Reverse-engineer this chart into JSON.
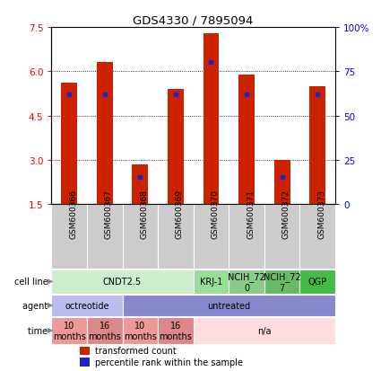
{
  "title": "GDS4330 / 7895094",
  "samples": [
    "GSM600366",
    "GSM600367",
    "GSM600368",
    "GSM600369",
    "GSM600370",
    "GSM600371",
    "GSM600372",
    "GSM600373"
  ],
  "transformed_counts": [
    5.6,
    6.3,
    2.85,
    5.4,
    7.3,
    5.9,
    3.0,
    5.5
  ],
  "percentile_ranks": [
    0.62,
    0.62,
    0.15,
    0.62,
    0.8,
    0.62,
    0.15,
    0.62
  ],
  "bar_bottom": 1.5,
  "ylim": [
    1.5,
    7.5
  ],
  "yticks_left": [
    1.5,
    3.0,
    4.5,
    6.0,
    7.5
  ],
  "yticks_right_vals": [
    0,
    25,
    50,
    75,
    100
  ],
  "yticks_right_labels": [
    "0",
    "25",
    "50",
    "75",
    "100%"
  ],
  "bar_color": "#cc2200",
  "percentile_color": "#2222cc",
  "bar_width": 0.45,
  "grid_yticks": [
    3.0,
    4.5,
    6.0
  ],
  "cell_line_groups": [
    {
      "label": "CNDT2.5",
      "start": 0,
      "end": 4,
      "color": "#cceecc"
    },
    {
      "label": "KRJ-1",
      "start": 4,
      "end": 5,
      "color": "#99dd99"
    },
    {
      "label": "NCIH_72\n0",
      "start": 5,
      "end": 6,
      "color": "#88cc88"
    },
    {
      "label": "NCIH_72\n7",
      "start": 6,
      "end": 7,
      "color": "#66bb66"
    },
    {
      "label": "QGP",
      "start": 7,
      "end": 8,
      "color": "#44bb44"
    }
  ],
  "agent_groups": [
    {
      "label": "octreotide",
      "start": 0,
      "end": 2,
      "color": "#bbbbee"
    },
    {
      "label": "untreated",
      "start": 2,
      "end": 8,
      "color": "#8888cc"
    }
  ],
  "time_groups": [
    {
      "label": "10\nmonths",
      "start": 0,
      "end": 1,
      "color": "#ee9999"
    },
    {
      "label": "16\nmonths",
      "start": 1,
      "end": 2,
      "color": "#dd8888"
    },
    {
      "label": "10\nmonths",
      "start": 2,
      "end": 3,
      "color": "#ee9999"
    },
    {
      "label": "16\nmonths",
      "start": 3,
      "end": 4,
      "color": "#dd8888"
    },
    {
      "label": "n/a",
      "start": 4,
      "end": 8,
      "color": "#ffdddd"
    }
  ],
  "legend_items": [
    {
      "label": "transformed count",
      "color": "#cc2200"
    },
    {
      "label": "percentile rank within the sample",
      "color": "#2222cc"
    }
  ],
  "sample_bg_color": "#cccccc",
  "label_fontsize": 7,
  "tick_fontsize": 7.5,
  "sample_fontsize": 6.5
}
